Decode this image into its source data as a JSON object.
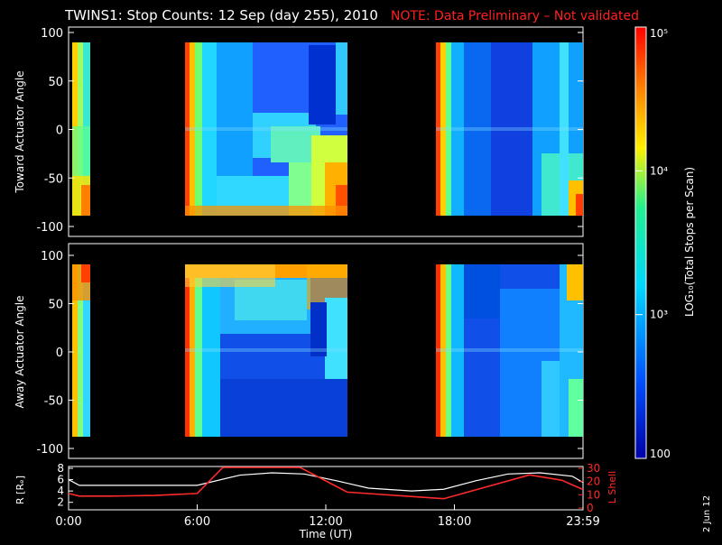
{
  "header": {
    "title": "TWINS1: Stop Counts: 12 Sep (day 255), 2010",
    "note": "NOTE: Data Preliminary – Not validated"
  },
  "side_date": "2 Jun 12",
  "colors": {
    "background": "#000000",
    "foreground": "#ffffff",
    "note": "#ff2020",
    "l_shell": "#ff2a2a",
    "r_line": "#ffffff"
  },
  "colorscale": "rainbow (blue-cyan-green-yellow-orange-red)",
  "chart_data": [
    {
      "type": "heatmap",
      "panel": "toward",
      "ylabel": "Toward Actuator Angle",
      "ylim": [
        -100,
        100
      ],
      "yticks": [
        "100",
        "50",
        "0",
        "-50",
        "-100"
      ],
      "xlim_hours": [
        0,
        24
      ],
      "data_gaps_hours": [
        [
          0.8,
          5.5
        ],
        [
          13.4,
          17.7
        ]
      ],
      "value_range": [
        100,
        100000
      ],
      "colorbar_label": "LOG₁₀(Total Stops per Scan)",
      "colorbar_ticks": [
        "10⁵",
        "10⁴",
        "10³",
        "100"
      ]
    },
    {
      "type": "heatmap",
      "panel": "away",
      "ylabel": "Away Actuator Angle",
      "ylim": [
        -100,
        100
      ],
      "yticks": [
        "100",
        "50",
        "0",
        "-50",
        "-100"
      ],
      "xlim_hours": [
        0,
        24
      ],
      "data_gaps_hours": [
        [
          0.8,
          5.5
        ],
        [
          13.4,
          17.7
        ]
      ]
    },
    {
      "type": "line",
      "panel": "orbit",
      "ylabel_left": "R [Rₑ]",
      "ylabel_right": "L Shell",
      "yticks_left": [
        "8",
        "6",
        "4",
        "2"
      ],
      "yticks_right": [
        "30",
        "20",
        "10",
        "0"
      ],
      "ylim_left": [
        1,
        8
      ],
      "ylim_right": [
        0,
        30
      ],
      "xlabel": "Time (UT)",
      "xticks": [
        "0:00",
        "6:00",
        "12:00",
        "18:00",
        "23:59"
      ],
      "series": [
        {
          "name": "R",
          "x": [
            0,
            0.5,
            2,
            4,
            6,
            8,
            9.5,
            11,
            12.5,
            14,
            16,
            17.5,
            19,
            20.5,
            22,
            23.5,
            24
          ],
          "values": [
            6.0,
            5.0,
            5.0,
            5.0,
            5.0,
            6.8,
            7.2,
            7.0,
            5.8,
            4.5,
            4.0,
            4.3,
            5.8,
            7.0,
            7.2,
            6.6,
            5.5
          ]
        },
        {
          "name": "L Shell",
          "x": [
            0,
            0.5,
            2,
            4,
            6,
            7.2,
            10.8,
            13,
            17.5,
            21.5,
            23,
            24
          ],
          "values": [
            11,
            9,
            9,
            9.5,
            11,
            31,
            31,
            12,
            7,
            25,
            21,
            14
          ]
        }
      ]
    }
  ]
}
